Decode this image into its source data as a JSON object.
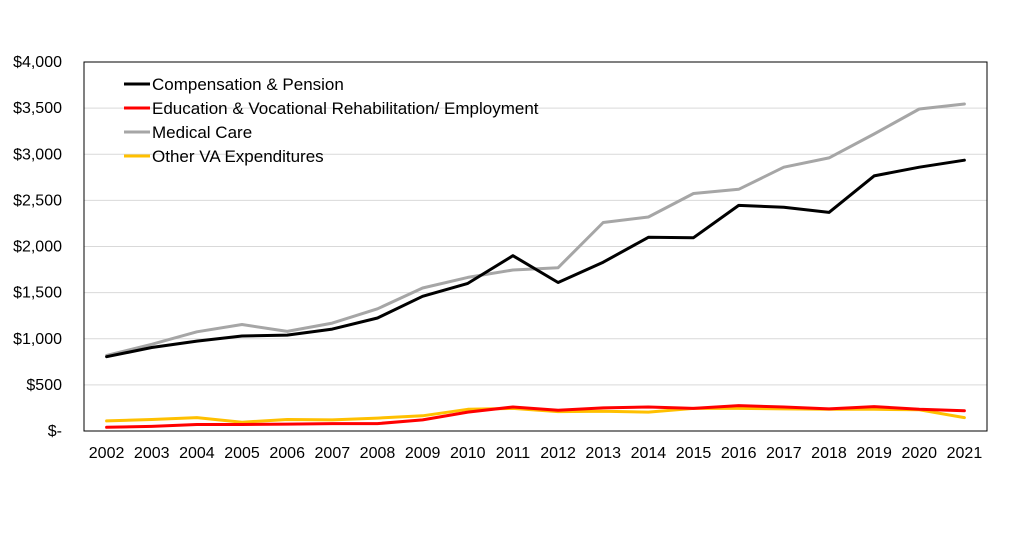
{
  "chart_data": {
    "type": "line",
    "title": "",
    "xlabel": "",
    "ylabel": "",
    "ylim": [
      0,
      4000
    ],
    "y_ticks": [
      {
        "value": 0,
        "label": "$-"
      },
      {
        "value": 500,
        "label": "$500"
      },
      {
        "value": 1000,
        "label": "$1,000"
      },
      {
        "value": 1500,
        "label": "$1,500"
      },
      {
        "value": 2000,
        "label": "$2,000"
      },
      {
        "value": 2500,
        "label": "$2,500"
      },
      {
        "value": 3000,
        "label": "$3,000"
      },
      {
        "value": 3500,
        "label": "$3,500"
      },
      {
        "value": 4000,
        "label": "$4,000"
      }
    ],
    "grid": true,
    "legend_position": "top-left",
    "categories": [
      "2002",
      "2003",
      "2004",
      "2005",
      "2006",
      "2007",
      "2008",
      "2009",
      "2010",
      "2011",
      "2012",
      "2013",
      "2014",
      "2015",
      "2016",
      "2017",
      "2018",
      "2019",
      "2020",
      "2021"
    ],
    "series": [
      {
        "name": "Compensation & Pension",
        "color": "#000000",
        "values": [
          805,
          905,
          975,
          1030,
          1040,
          1105,
          1225,
          1460,
          1600,
          1900,
          1610,
          1830,
          2100,
          2095,
          2445,
          2425,
          2370,
          2765,
          2860,
          2935
        ]
      },
      {
        "name": "Education & Vocational Rehabilitation/ Employment",
        "color": "#ff0000",
        "values": [
          40,
          50,
          70,
          70,
          75,
          80,
          80,
          120,
          205,
          260,
          225,
          250,
          260,
          245,
          275,
          260,
          240,
          265,
          235,
          220
        ]
      },
      {
        "name": "Medical Care",
        "color": "#a6a6a6",
        "values": [
          820,
          940,
          1075,
          1155,
          1080,
          1170,
          1325,
          1550,
          1665,
          1745,
          1770,
          2260,
          2320,
          2575,
          2620,
          2860,
          2960,
          3220,
          3490,
          3545
        ]
      },
      {
        "name": "Other VA Expenditures",
        "color": "#ffc000",
        "values": [
          110,
          125,
          145,
          95,
          125,
          120,
          140,
          165,
          235,
          245,
          210,
          215,
          205,
          245,
          245,
          240,
          235,
          235,
          230,
          145
        ]
      }
    ]
  }
}
